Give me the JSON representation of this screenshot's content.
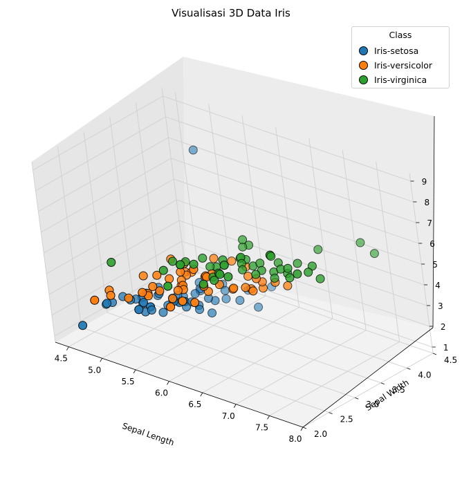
{
  "chart_data": {
    "type": "scatter3d",
    "title": "Visualisasi 3D Data Iris",
    "xlabel": "Sepal Length",
    "ylabel": "Sepal Width",
    "zlabel": "",
    "xlim": [
      4.3,
      8.0
    ],
    "ylim": [
      2.0,
      4.5
    ],
    "zlim": [
      0.7,
      9.4
    ],
    "xticks": [
      "4.5",
      "5.0",
      "5.5",
      "6.0",
      "6.5",
      "7.0",
      "7.5",
      "8.0"
    ],
    "yticks": [
      "2.0",
      "2.5",
      "3.0",
      "3.5",
      "4.0",
      "4.5"
    ],
    "zticks": [
      "1",
      "2",
      "3",
      "4",
      "5",
      "6",
      "7",
      "8",
      "9"
    ],
    "legend": {
      "title": "Class",
      "position": "upper-right"
    },
    "series": [
      {
        "name": "Iris-setosa",
        "color": "#1f77b4",
        "points": [
          [
            5.1,
            3.5,
            1.4
          ],
          [
            4.9,
            3.0,
            1.4
          ],
          [
            4.7,
            3.2,
            1.3
          ],
          [
            4.6,
            3.1,
            1.5
          ],
          [
            5.0,
            3.6,
            1.4
          ],
          [
            5.4,
            3.9,
            1.7
          ],
          [
            4.6,
            3.4,
            1.4
          ],
          [
            5.0,
            3.4,
            1.5
          ],
          [
            4.4,
            2.9,
            1.4
          ],
          [
            4.9,
            3.1,
            1.5
          ],
          [
            5.4,
            3.7,
            1.5
          ],
          [
            4.8,
            3.4,
            1.6
          ],
          [
            4.8,
            3.0,
            1.4
          ],
          [
            4.3,
            3.0,
            1.1
          ],
          [
            5.8,
            4.0,
            1.2
          ],
          [
            5.7,
            4.4,
            1.5
          ],
          [
            5.4,
            3.9,
            1.3
          ],
          [
            5.1,
            3.5,
            1.4
          ],
          [
            5.7,
            3.8,
            1.7
          ],
          [
            5.1,
            3.8,
            1.5
          ],
          [
            5.4,
            3.4,
            1.7
          ],
          [
            5.1,
            3.7,
            1.5
          ],
          [
            4.6,
            3.6,
            1.0
          ],
          [
            5.1,
            3.3,
            1.7
          ],
          [
            4.8,
            3.4,
            1.9
          ],
          [
            5.0,
            3.0,
            1.6
          ],
          [
            5.0,
            3.4,
            1.6
          ],
          [
            5.2,
            3.5,
            1.5
          ],
          [
            5.2,
            3.4,
            1.4
          ],
          [
            4.7,
            3.2,
            1.6
          ],
          [
            4.8,
            3.1,
            1.6
          ],
          [
            5.4,
            3.4,
            1.5
          ],
          [
            5.2,
            4.1,
            1.5
          ],
          [
            5.5,
            4.2,
            1.4
          ],
          [
            4.9,
            3.1,
            1.5
          ],
          [
            5.0,
            3.2,
            1.2
          ],
          [
            5.5,
            3.5,
            1.3
          ],
          [
            4.4,
            3.0,
            1.3
          ],
          [
            5.1,
            3.4,
            1.5
          ],
          [
            5.0,
            3.5,
            1.3
          ],
          [
            4.5,
            2.3,
            1.3
          ],
          [
            4.4,
            3.2,
            1.3
          ],
          [
            5.0,
            3.5,
            1.6
          ],
          [
            5.1,
            3.8,
            1.9
          ],
          [
            4.8,
            3.0,
            1.4
          ],
          [
            5.1,
            3.8,
            1.6
          ],
          [
            4.6,
            3.2,
            1.4
          ],
          [
            5.3,
            3.7,
            1.5
          ],
          [
            5.0,
            3.3,
            1.4
          ],
          [
            5.1,
            4.0,
            8.0
          ]
        ]
      },
      {
        "name": "Iris-versicolor",
        "color": "#ff7f0e",
        "points": [
          [
            7.0,
            3.2,
            4.7
          ],
          [
            6.4,
            3.2,
            4.5
          ],
          [
            6.9,
            3.1,
            4.9
          ],
          [
            5.5,
            2.3,
            4.0
          ],
          [
            6.5,
            2.8,
            4.6
          ],
          [
            5.7,
            2.8,
            4.5
          ],
          [
            6.3,
            3.3,
            4.7
          ],
          [
            4.9,
            2.4,
            3.3
          ],
          [
            6.6,
            2.9,
            4.6
          ],
          [
            5.2,
            2.7,
            3.9
          ],
          [
            5.0,
            2.0,
            3.5
          ],
          [
            5.9,
            3.0,
            4.2
          ],
          [
            6.0,
            2.2,
            4.0
          ],
          [
            6.1,
            2.9,
            4.7
          ],
          [
            5.6,
            2.9,
            3.6
          ],
          [
            6.7,
            3.1,
            4.4
          ],
          [
            5.6,
            3.0,
            4.5
          ],
          [
            5.8,
            2.7,
            4.1
          ],
          [
            6.2,
            2.2,
            4.5
          ],
          [
            5.6,
            2.5,
            3.9
          ],
          [
            5.9,
            3.2,
            4.8
          ],
          [
            6.1,
            2.8,
            4.0
          ],
          [
            6.3,
            2.5,
            4.9
          ],
          [
            6.1,
            2.8,
            4.7
          ],
          [
            6.4,
            2.9,
            4.3
          ],
          [
            6.6,
            3.0,
            4.4
          ],
          [
            6.8,
            2.8,
            4.8
          ],
          [
            6.7,
            3.0,
            5.0
          ],
          [
            6.0,
            2.9,
            4.5
          ],
          [
            5.7,
            2.6,
            3.5
          ],
          [
            5.5,
            2.4,
            3.8
          ],
          [
            5.5,
            2.4,
            3.7
          ],
          [
            5.8,
            2.7,
            3.9
          ],
          [
            6.0,
            2.7,
            5.1
          ],
          [
            5.4,
            3.0,
            4.5
          ],
          [
            6.0,
            3.4,
            4.5
          ],
          [
            6.7,
            3.1,
            4.7
          ],
          [
            6.3,
            2.3,
            4.4
          ],
          [
            5.6,
            3.0,
            4.1
          ],
          [
            5.5,
            2.5,
            4.0
          ],
          [
            5.5,
            2.6,
            4.4
          ],
          [
            6.1,
            3.0,
            4.6
          ],
          [
            5.8,
            2.6,
            4.0
          ],
          [
            5.0,
            2.3,
            3.3
          ],
          [
            5.6,
            2.7,
            4.2
          ],
          [
            5.7,
            3.0,
            4.2
          ],
          [
            5.7,
            2.9,
            4.2
          ],
          [
            6.2,
            2.9,
            4.3
          ],
          [
            5.1,
            2.5,
            3.0
          ],
          [
            5.7,
            2.8,
            4.1
          ]
        ]
      },
      {
        "name": "Iris-virginica",
        "color": "#2ca02c",
        "points": [
          [
            6.3,
            3.3,
            6.0
          ],
          [
            5.8,
            2.7,
            5.1
          ],
          [
            7.1,
            3.0,
            5.9
          ],
          [
            6.3,
            2.9,
            5.6
          ],
          [
            6.5,
            3.0,
            5.8
          ],
          [
            7.6,
            3.0,
            6.6
          ],
          [
            4.9,
            2.5,
            4.5
          ],
          [
            7.3,
            2.9,
            6.3
          ],
          [
            6.7,
            2.5,
            5.8
          ],
          [
            7.2,
            3.6,
            6.1
          ],
          [
            6.5,
            3.2,
            5.1
          ],
          [
            6.4,
            2.7,
            5.3
          ],
          [
            6.8,
            3.0,
            5.5
          ],
          [
            5.7,
            2.5,
            5.0
          ],
          [
            5.8,
            2.8,
            5.1
          ],
          [
            6.4,
            3.2,
            5.3
          ],
          [
            6.5,
            3.0,
            5.5
          ],
          [
            7.7,
            3.8,
            6.7
          ],
          [
            7.7,
            2.6,
            6.9
          ],
          [
            6.0,
            2.2,
            5.0
          ],
          [
            6.9,
            3.2,
            5.7
          ],
          [
            5.6,
            2.8,
            4.9
          ],
          [
            7.7,
            2.8,
            6.7
          ],
          [
            6.3,
            2.7,
            4.9
          ],
          [
            6.7,
            3.3,
            5.7
          ],
          [
            7.2,
            3.2,
            6.0
          ],
          [
            6.2,
            2.8,
            4.8
          ],
          [
            6.1,
            3.0,
            4.9
          ],
          [
            6.4,
            2.8,
            5.6
          ],
          [
            7.2,
            3.0,
            5.8
          ],
          [
            7.4,
            2.8,
            6.1
          ],
          [
            7.9,
            3.8,
            6.4
          ],
          [
            6.4,
            2.8,
            5.6
          ],
          [
            6.3,
            2.8,
            5.1
          ],
          [
            6.1,
            2.6,
            5.6
          ],
          [
            7.7,
            3.0,
            6.1
          ],
          [
            6.3,
            3.4,
            5.6
          ],
          [
            6.4,
            3.1,
            5.5
          ],
          [
            6.0,
            3.0,
            4.8
          ],
          [
            6.9,
            3.1,
            5.4
          ],
          [
            6.7,
            3.1,
            5.6
          ],
          [
            6.9,
            3.1,
            5.1
          ],
          [
            5.8,
            2.7,
            5.1
          ],
          [
            6.8,
            3.2,
            5.9
          ],
          [
            6.7,
            3.3,
            5.7
          ],
          [
            6.7,
            3.0,
            5.2
          ],
          [
            6.3,
            2.5,
            5.0
          ],
          [
            6.5,
            3.0,
            5.2
          ],
          [
            6.2,
            3.4,
            5.4
          ],
          [
            5.9,
            3.0,
            5.1
          ]
        ]
      }
    ]
  }
}
